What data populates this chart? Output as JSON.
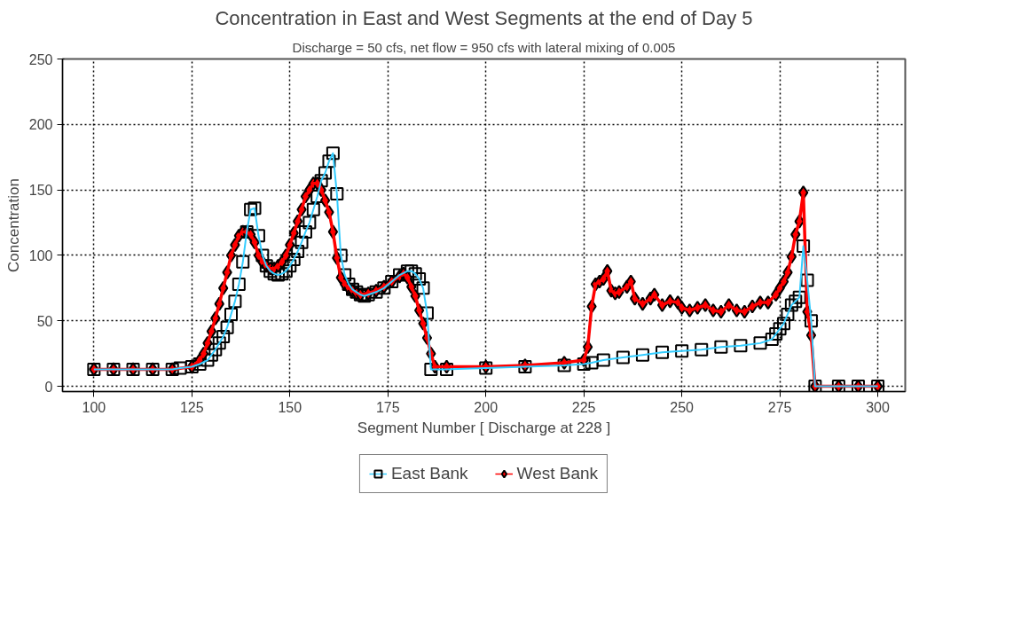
{
  "chart_data": {
    "type": "line",
    "title": "Concentration in East and West Segments at the end of Day 5",
    "subtitle": "Discharge = 50 cfs, net flow = 950 cfs with lateral mixing of 0.005",
    "xlabel": "Segment Number [ Discharge at 228 ]",
    "ylabel": "Concentration",
    "xlim": [
      92,
      307
    ],
    "ylim": [
      -4,
      250
    ],
    "xticks": [
      100,
      125,
      150,
      175,
      200,
      225,
      250,
      275,
      300
    ],
    "yticks": [
      0,
      50,
      100,
      150,
      200,
      250
    ],
    "grid": true,
    "legend": "bottom",
    "line_style": "solid",
    "series": [
      {
        "name": "East Bank",
        "color": "#33ccff",
        "marker": "square",
        "x": [
          100,
          105,
          110,
          115,
          120,
          122,
          125,
          127,
          129,
          130,
          131,
          132,
          133,
          134,
          135,
          136,
          137,
          138,
          139,
          140,
          141,
          142,
          143,
          144,
          145,
          146,
          147,
          148,
          149,
          150,
          151,
          152,
          153,
          154,
          155,
          156,
          157,
          158,
          159,
          160,
          161,
          162,
          163,
          164,
          165,
          166,
          167,
          168,
          169,
          170,
          172,
          174,
          176,
          178,
          180,
          181,
          182,
          183,
          184,
          185,
          186,
          190,
          200,
          210,
          220,
          225,
          227,
          230,
          235,
          240,
          245,
          250,
          255,
          260,
          265,
          270,
          273,
          274,
          275,
          276,
          277,
          278,
          279,
          280,
          281,
          282,
          283,
          284,
          290,
          295,
          300
        ],
        "values": [
          13,
          13,
          13,
          13,
          13,
          14,
          15,
          17,
          20,
          24,
          28,
          33,
          38,
          45,
          55,
          65,
          78,
          95,
          118,
          135,
          136,
          115,
          100,
          92,
          88,
          86,
          85,
          86,
          88,
          92,
          97,
          103,
          110,
          118,
          125,
          135,
          145,
          157,
          163,
          172,
          178,
          147,
          100,
          85,
          78,
          74,
          72,
          70,
          69,
          70,
          72,
          75,
          80,
          85,
          88,
          88,
          86,
          82,
          75,
          56,
          13,
          13,
          14,
          15,
          16,
          17,
          18,
          20,
          22,
          24,
          26,
          27,
          28,
          30,
          31,
          33,
          36,
          40,
          44,
          48,
          55,
          62,
          65,
          68,
          107,
          81,
          50,
          0,
          0,
          0,
          0
        ]
      },
      {
        "name": "West Bank",
        "color": "#ff0000",
        "marker": "diamond",
        "x": [
          100,
          105,
          110,
          115,
          120,
          125,
          127,
          128,
          129,
          130,
          131,
          132,
          133,
          134,
          135,
          136,
          137,
          138,
          139,
          140,
          141,
          142,
          143,
          144,
          145,
          146,
          147,
          148,
          149,
          150,
          151,
          152,
          153,
          154,
          155,
          156,
          157,
          158,
          159,
          160,
          161,
          162,
          163,
          164,
          165,
          166,
          167,
          168,
          170,
          172,
          174,
          176,
          178,
          179,
          180,
          181,
          182,
          183,
          184,
          185,
          186,
          187,
          190,
          200,
          210,
          220,
          225,
          226,
          227,
          228,
          229,
          230,
          231,
          232,
          233,
          234,
          236,
          237,
          238,
          240,
          242,
          243,
          245,
          247,
          249,
          250,
          252,
          254,
          256,
          258,
          260,
          262,
          264,
          266,
          268,
          270,
          272,
          274,
          275,
          276,
          277,
          278,
          279,
          280,
          281,
          282,
          283,
          284,
          290,
          295,
          300
        ],
        "values": [
          13,
          13,
          13,
          13,
          13,
          15,
          20,
          25,
          33,
          42,
          52,
          63,
          75,
          87,
          100,
          108,
          115,
          118,
          118,
          116,
          110,
          100,
          95,
          92,
          90,
          90,
          92,
          95,
          100,
          108,
          117,
          126,
          135,
          145,
          150,
          155,
          155,
          150,
          142,
          133,
          118,
          98,
          83,
          78,
          75,
          73,
          71,
          70,
          71,
          73,
          76,
          80,
          84,
          86,
          83,
          76,
          69,
          58,
          48,
          37,
          25,
          15,
          15,
          15,
          16,
          18,
          20,
          30,
          61,
          78,
          80,
          82,
          88,
          73,
          71,
          72,
          76,
          80,
          67,
          63,
          67,
          70,
          62,
          65,
          64,
          60,
          58,
          60,
          62,
          58,
          57,
          62,
          58,
          57,
          61,
          64,
          64,
          70,
          75,
          80,
          87,
          99,
          116,
          126,
          148,
          57,
          39,
          0,
          0,
          0,
          0
        ]
      }
    ]
  }
}
